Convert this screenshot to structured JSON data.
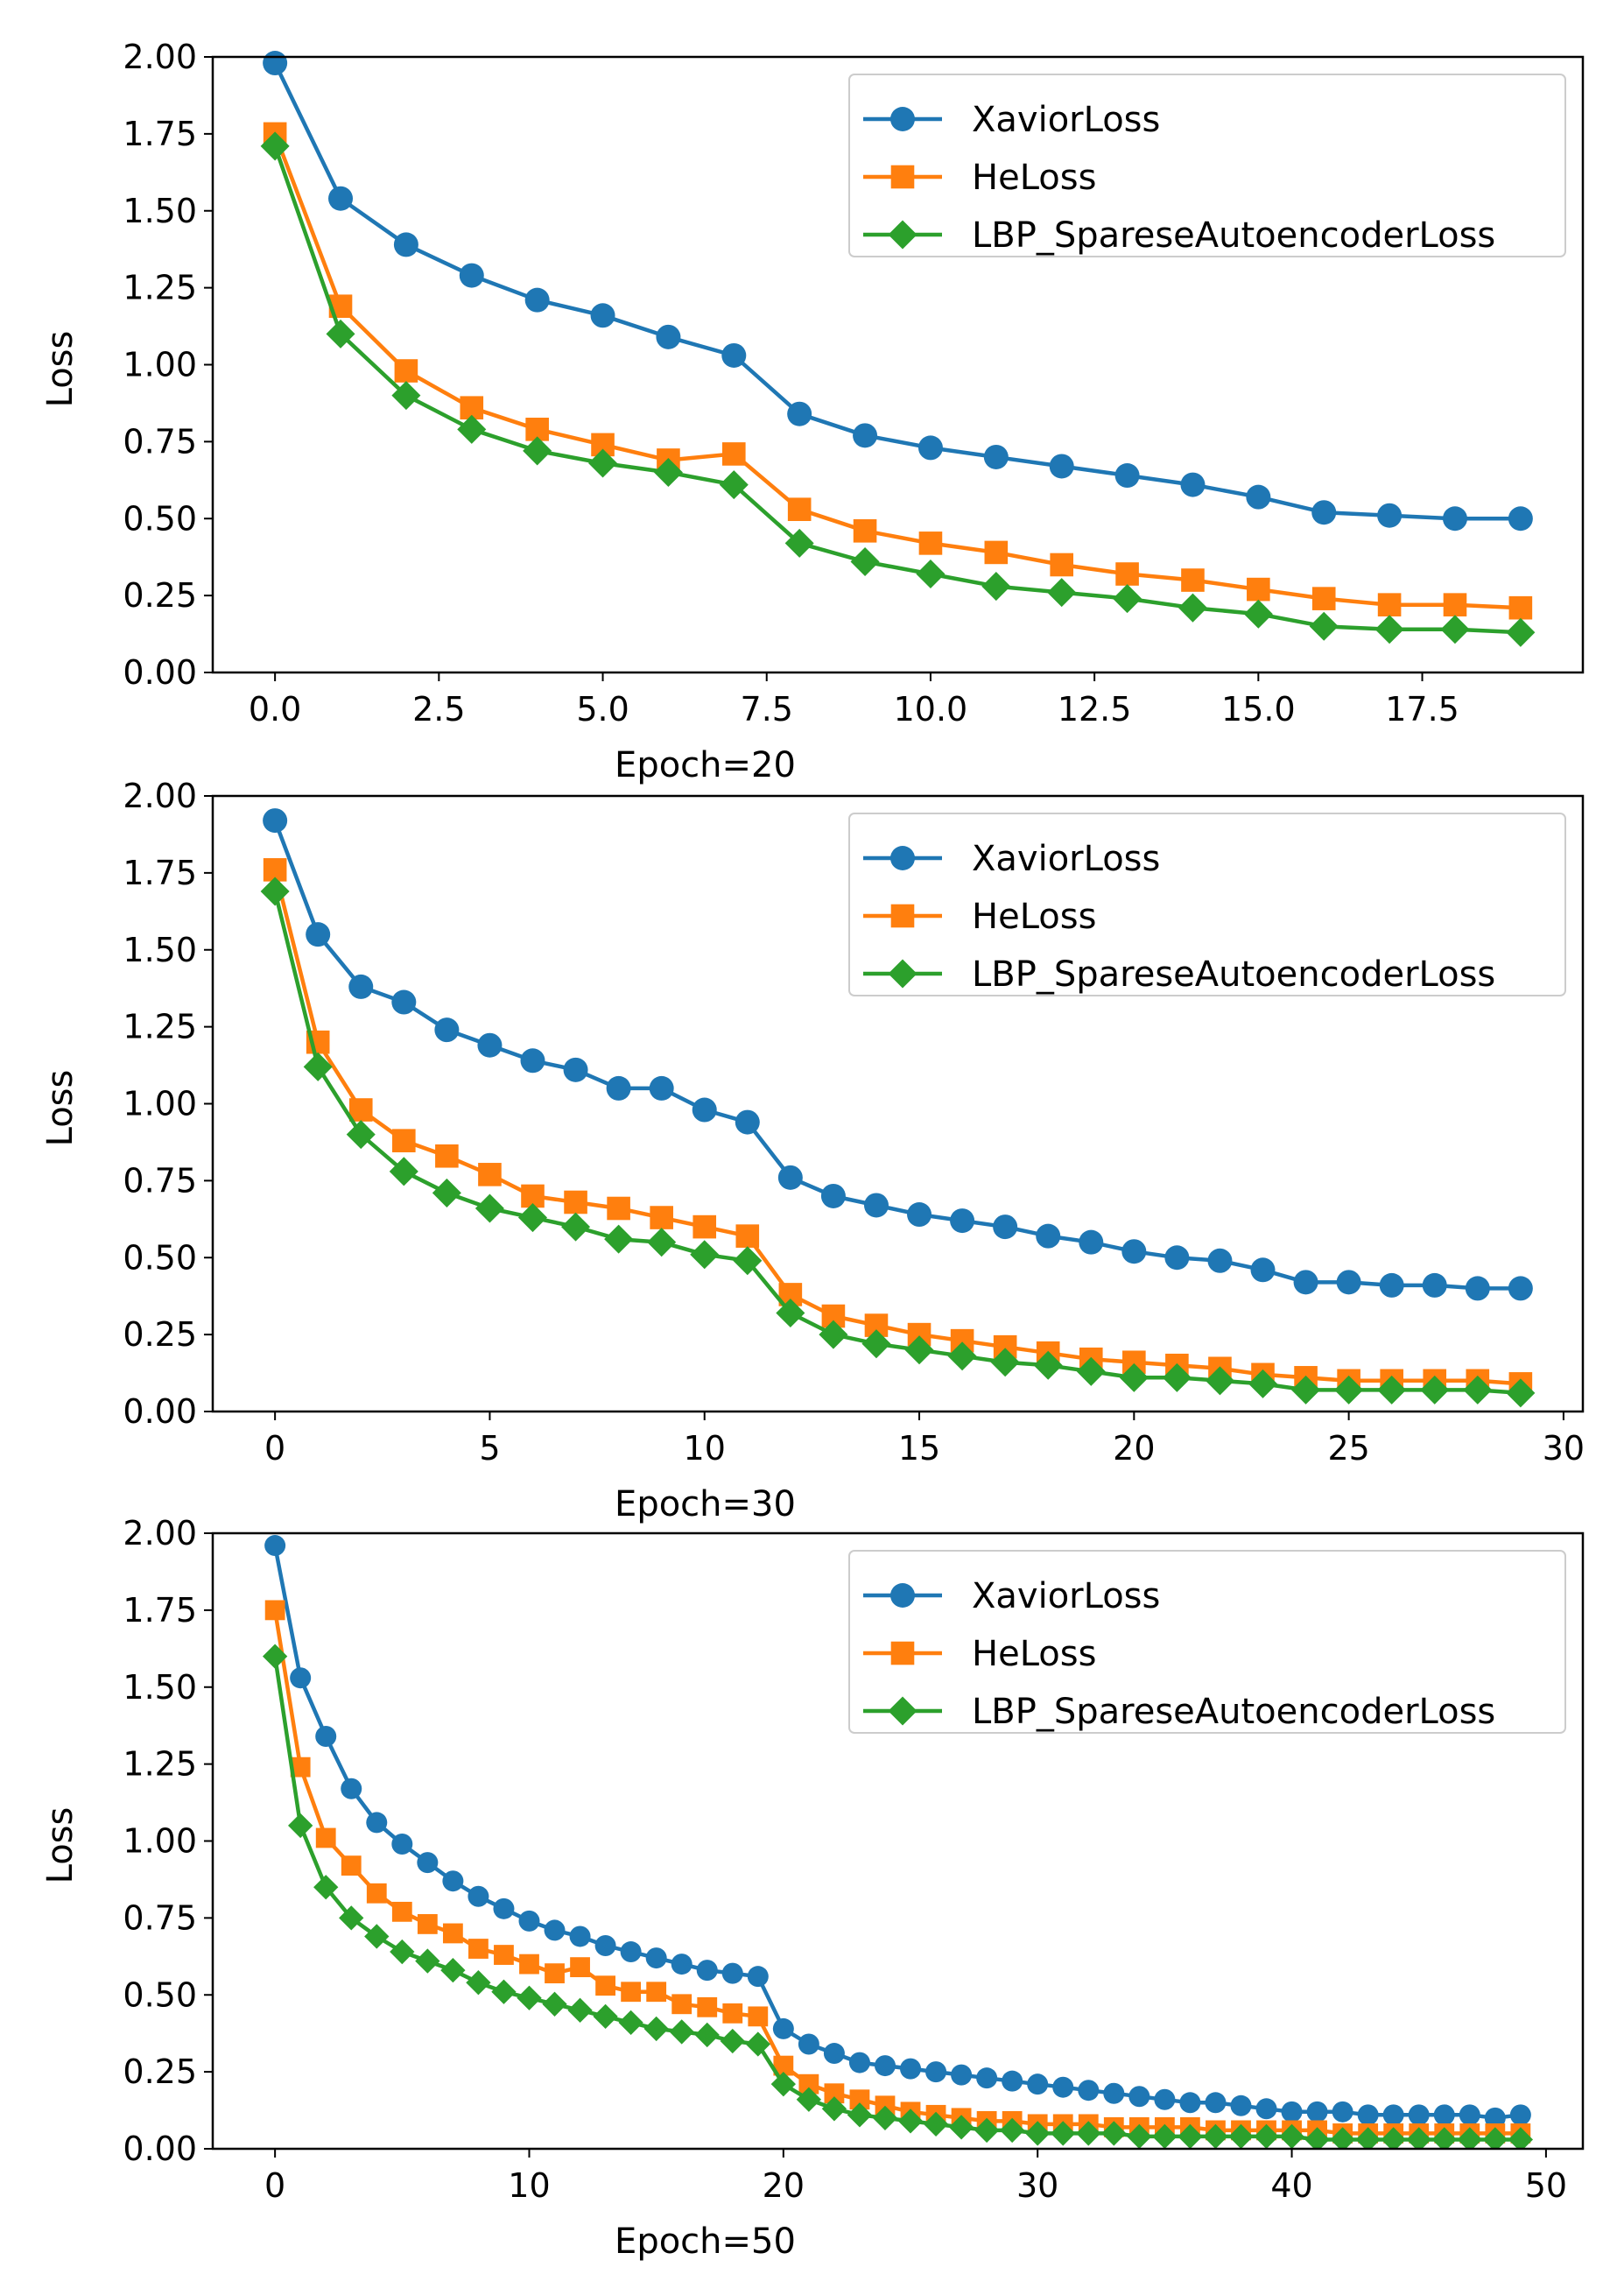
{
  "chart_data": [
    {
      "type": "line",
      "xlabel": "Epoch=20",
      "ylabel": "Loss",
      "xlim": [
        -0.95,
        19.95
      ],
      "ylim": [
        0,
        2
      ],
      "xticks": [
        0,
        2.5,
        5,
        7.5,
        10,
        12.5,
        15,
        17.5
      ],
      "xtick_labels": [
        "0.0",
        "2.5",
        "5.0",
        "7.5",
        "10.0",
        "12.5",
        "15.0",
        "17.5"
      ],
      "yticks": [
        0,
        0.25,
        0.5,
        0.75,
        1,
        1.25,
        1.5,
        1.75,
        2
      ],
      "ytick_labels": [
        "0.00",
        "0.25",
        "0.50",
        "0.75",
        "1.00",
        "1.25",
        "1.50",
        "1.75",
        "2.00"
      ],
      "legend_position": "top-right",
      "grid": false,
      "x": [
        0,
        1,
        2,
        3,
        4,
        5,
        6,
        7,
        8,
        9,
        10,
        11,
        12,
        13,
        14,
        15,
        16,
        17,
        18,
        19
      ],
      "series": [
        {
          "name": "XaviorLoss",
          "color": "#1f77b4",
          "marker": "circle",
          "values": [
            1.98,
            1.54,
            1.39,
            1.29,
            1.21,
            1.16,
            1.09,
            1.03,
            0.84,
            0.77,
            0.73,
            0.7,
            0.67,
            0.64,
            0.61,
            0.57,
            0.52,
            0.51,
            0.5,
            0.5
          ]
        },
        {
          "name": "HeLoss",
          "color": "#ff7f0e",
          "marker": "square",
          "values": [
            1.75,
            1.19,
            0.98,
            0.86,
            0.79,
            0.74,
            0.69,
            0.71,
            0.53,
            0.46,
            0.42,
            0.39,
            0.35,
            0.32,
            0.3,
            0.27,
            0.24,
            0.22,
            0.22,
            0.21
          ]
        },
        {
          "name": "LBP_SpareseAutoencoderLoss",
          "color": "#2ca02c",
          "marker": "diamond",
          "values": [
            1.71,
            1.1,
            0.9,
            0.79,
            0.72,
            0.68,
            0.65,
            0.61,
            0.42,
            0.36,
            0.32,
            0.28,
            0.26,
            0.24,
            0.21,
            0.19,
            0.15,
            0.14,
            0.14,
            0.13
          ]
        }
      ]
    },
    {
      "type": "line",
      "xlabel": "Epoch=30",
      "ylabel": "Loss",
      "xlim": [
        -1.45,
        30.45
      ],
      "ylim": [
        0,
        2
      ],
      "xticks": [
        0,
        5,
        10,
        15,
        20,
        25,
        30
      ],
      "xtick_labels": [
        "0",
        "5",
        "10",
        "15",
        "20",
        "25",
        "30"
      ],
      "yticks": [
        0,
        0.25,
        0.5,
        0.75,
        1,
        1.25,
        1.5,
        1.75,
        2
      ],
      "ytick_labels": [
        "0.00",
        "0.25",
        "0.50",
        "0.75",
        "1.00",
        "1.25",
        "1.50",
        "1.75",
        "2.00"
      ],
      "legend_position": "top-right",
      "grid": false,
      "x": [
        0,
        1,
        2,
        3,
        4,
        5,
        6,
        7,
        8,
        9,
        10,
        11,
        12,
        13,
        14,
        15,
        16,
        17,
        18,
        19,
        20,
        21,
        22,
        23,
        24,
        25,
        26,
        27,
        28,
        29
      ],
      "series": [
        {
          "name": "XaviorLoss",
          "color": "#1f77b4",
          "marker": "circle",
          "values": [
            1.92,
            1.55,
            1.38,
            1.33,
            1.24,
            1.19,
            1.14,
            1.11,
            1.05,
            1.05,
            0.98,
            0.94,
            0.76,
            0.7,
            0.67,
            0.64,
            0.62,
            0.6,
            0.57,
            0.55,
            0.52,
            0.5,
            0.49,
            0.46,
            0.42,
            0.42,
            0.41,
            0.41,
            0.4,
            0.4
          ]
        },
        {
          "name": "HeLoss",
          "color": "#ff7f0e",
          "marker": "square",
          "values": [
            1.76,
            1.2,
            0.98,
            0.88,
            0.83,
            0.77,
            0.7,
            0.68,
            0.66,
            0.63,
            0.6,
            0.57,
            0.38,
            0.31,
            0.28,
            0.25,
            0.23,
            0.21,
            0.19,
            0.17,
            0.16,
            0.15,
            0.14,
            0.12,
            0.11,
            0.1,
            0.1,
            0.1,
            0.1,
            0.09
          ]
        },
        {
          "name": "LBP_SpareseAutoencoderLoss",
          "color": "#2ca02c",
          "marker": "diamond",
          "values": [
            1.69,
            1.12,
            0.9,
            0.78,
            0.71,
            0.66,
            0.63,
            0.6,
            0.56,
            0.55,
            0.51,
            0.49,
            0.32,
            0.25,
            0.22,
            0.2,
            0.18,
            0.16,
            0.15,
            0.13,
            0.11,
            0.11,
            0.1,
            0.09,
            0.07,
            0.07,
            0.07,
            0.07,
            0.07,
            0.06
          ]
        }
      ]
    },
    {
      "type": "line",
      "xlabel": "Epoch=50",
      "ylabel": "Loss",
      "xlim": [
        -2.45,
        51.45
      ],
      "ylim": [
        0,
        2
      ],
      "xticks": [
        0,
        10,
        20,
        30,
        40,
        50
      ],
      "xtick_labels": [
        "0",
        "10",
        "20",
        "30",
        "40",
        "50"
      ],
      "yticks": [
        0,
        0.25,
        0.5,
        0.75,
        1,
        1.25,
        1.5,
        1.75,
        2
      ],
      "ytick_labels": [
        "0.00",
        "0.25",
        "0.50",
        "0.75",
        "1.00",
        "1.25",
        "1.50",
        "1.75",
        "2.00"
      ],
      "legend_position": "top-right",
      "grid": false,
      "x": [
        0,
        1,
        2,
        3,
        4,
        5,
        6,
        7,
        8,
        9,
        10,
        11,
        12,
        13,
        14,
        15,
        16,
        17,
        18,
        19,
        20,
        21,
        22,
        23,
        24,
        25,
        26,
        27,
        28,
        29,
        30,
        31,
        32,
        33,
        34,
        35,
        36,
        37,
        38,
        39,
        40,
        41,
        42,
        43,
        44,
        45,
        46,
        47,
        48,
        49
      ],
      "series": [
        {
          "name": "XaviorLoss",
          "color": "#1f77b4",
          "marker": "circle",
          "values": [
            1.96,
            1.53,
            1.34,
            1.17,
            1.06,
            0.99,
            0.93,
            0.87,
            0.82,
            0.78,
            0.74,
            0.71,
            0.69,
            0.66,
            0.64,
            0.62,
            0.6,
            0.58,
            0.57,
            0.56,
            0.39,
            0.34,
            0.31,
            0.28,
            0.27,
            0.26,
            0.25,
            0.24,
            0.23,
            0.22,
            0.21,
            0.2,
            0.19,
            0.18,
            0.17,
            0.16,
            0.15,
            0.15,
            0.14,
            0.13,
            0.12,
            0.12,
            0.12,
            0.11,
            0.11,
            0.11,
            0.11,
            0.11,
            0.1,
            0.11
          ]
        },
        {
          "name": "HeLoss",
          "color": "#ff7f0e",
          "marker": "square",
          "values": [
            1.75,
            1.24,
            1.01,
            0.92,
            0.83,
            0.77,
            0.73,
            0.7,
            0.65,
            0.63,
            0.6,
            0.57,
            0.59,
            0.53,
            0.51,
            0.51,
            0.47,
            0.46,
            0.44,
            0.43,
            0.27,
            0.21,
            0.18,
            0.16,
            0.14,
            0.12,
            0.11,
            0.1,
            0.09,
            0.09,
            0.08,
            0.08,
            0.08,
            0.07,
            0.07,
            0.07,
            0.07,
            0.06,
            0.06,
            0.06,
            0.06,
            0.06,
            0.05,
            0.05,
            0.05,
            0.05,
            0.05,
            0.05,
            0.05,
            0.05
          ]
        },
        {
          "name": "LBP_SpareseAutoencoderLoss",
          "color": "#2ca02c",
          "marker": "diamond",
          "values": [
            1.6,
            1.05,
            0.85,
            0.75,
            0.69,
            0.64,
            0.61,
            0.58,
            0.54,
            0.51,
            0.49,
            0.47,
            0.45,
            0.43,
            0.41,
            0.39,
            0.38,
            0.37,
            0.35,
            0.34,
            0.21,
            0.16,
            0.13,
            0.11,
            0.1,
            0.09,
            0.08,
            0.07,
            0.06,
            0.06,
            0.05,
            0.05,
            0.05,
            0.05,
            0.04,
            0.04,
            0.04,
            0.04,
            0.04,
            0.04,
            0.04,
            0.03,
            0.03,
            0.03,
            0.03,
            0.03,
            0.03,
            0.03,
            0.03,
            0.03
          ]
        }
      ]
    }
  ]
}
